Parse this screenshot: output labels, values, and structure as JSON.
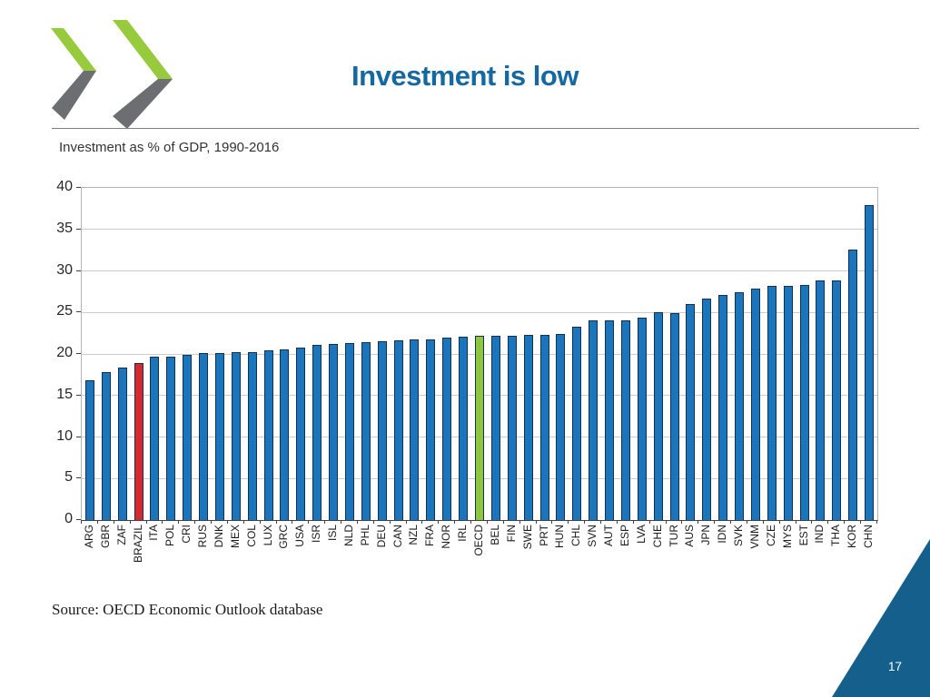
{
  "slide": {
    "title": "Investment is low",
    "source": "Source: OECD Economic Outlook database",
    "page_number": "17",
    "colors": {
      "title_blue": "#1568a0",
      "corner_triangle_blue": "#155f8d",
      "bar_blue": "#1b75bc",
      "bar_border": "#14304f",
      "brazil_red": "#d6282e",
      "oecd_green": "#8ec63f",
      "logo_green": "#97ca3d",
      "logo_grey": "#6d6e71",
      "gridline_grey": "#cccccc"
    }
  },
  "chart_data": {
    "type": "bar",
    "title": "Investment as % of GDP, 1990-2016",
    "xlabel": "",
    "ylabel": "",
    "ylim": [
      0,
      40
    ],
    "yticks": [
      0,
      5,
      10,
      15,
      20,
      25,
      30,
      35,
      40
    ],
    "grid": true,
    "legend": "none",
    "categories": [
      "ARG",
      "GBR",
      "ZAF",
      "BRAZIL",
      "ITA",
      "POL",
      "CRI",
      "RUS",
      "DNK",
      "MEX",
      "COL",
      "LUX",
      "GRC",
      "USA",
      "ISR",
      "ISL",
      "NLD",
      "PHL",
      "DEU",
      "CAN",
      "NZL",
      "FRA",
      "NOR",
      "IRL",
      "OECD",
      "BEL",
      "FIN",
      "SWE",
      "PRT",
      "HUN",
      "CHL",
      "SVN",
      "AUT",
      "ESP",
      "LVA",
      "CHE",
      "TUR",
      "AUS",
      "JPN",
      "IDN",
      "SVK",
      "VNM",
      "CZE",
      "MYS",
      "EST",
      "IND",
      "THA",
      "KOR",
      "CHN"
    ],
    "values": [
      16.8,
      17.8,
      18.4,
      18.9,
      19.7,
      19.7,
      19.9,
      20.1,
      20.1,
      20.2,
      20.2,
      20.4,
      20.5,
      20.8,
      21.1,
      21.2,
      21.3,
      21.4,
      21.5,
      21.6,
      21.7,
      21.8,
      22.0,
      22.1,
      22.2,
      22.2,
      22.2,
      22.3,
      22.3,
      22.4,
      23.3,
      24.1,
      24.1,
      24.1,
      24.4,
      25.0,
      24.9,
      26.0,
      26.7,
      27.1,
      27.4,
      27.9,
      28.2,
      28.2,
      28.3,
      28.8,
      28.9,
      32.6,
      37.9
    ],
    "highlight_colors": {
      "BRAZIL": "#d6282e",
      "OECD": "#8ec63f"
    }
  }
}
